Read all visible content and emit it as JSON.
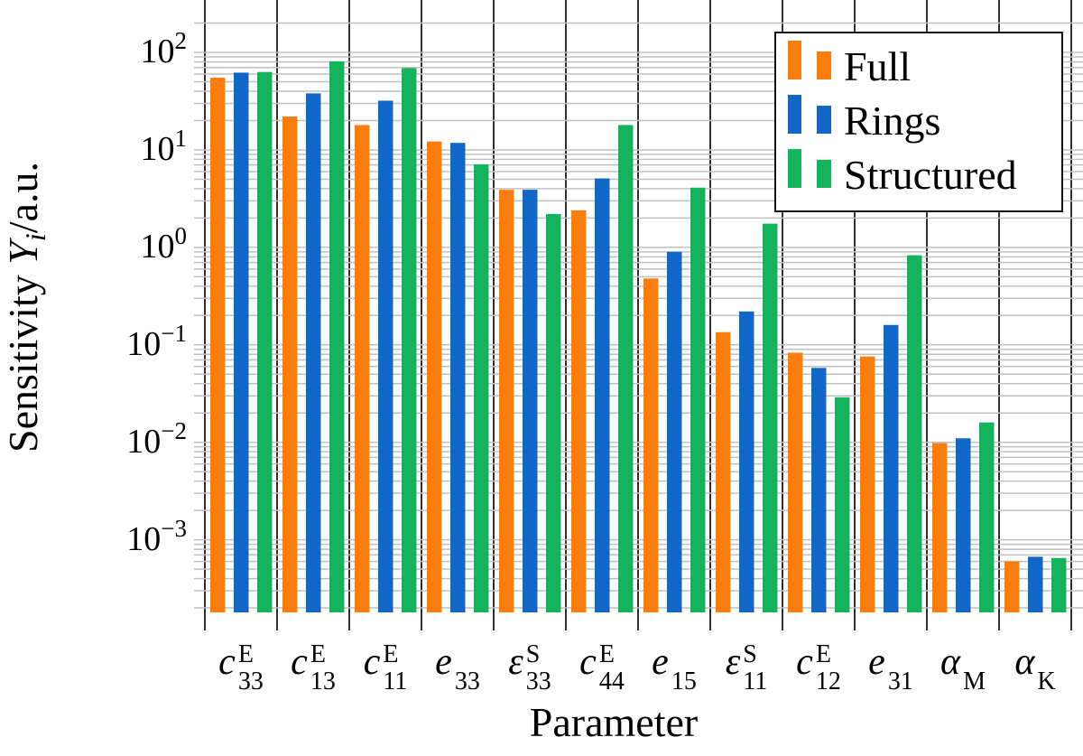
{
  "chart_data": {
    "type": "bar",
    "yscale": "log",
    "grid": "both",
    "title": "",
    "xlabel": "Parameter",
    "ylabel": "Sensitivity Υi/a.u.",
    "ylabel_parts": {
      "prefix": "Sensitivity ",
      "symbol": "Υ",
      "symbol_sub": "i",
      "suffix": "/a.u."
    },
    "ylim": [
      0.00018,
      345
    ],
    "y_tick_base": "10",
    "y_ticks": [
      {
        "value": 100,
        "exp": "2"
      },
      {
        "value": 10,
        "exp": "1"
      },
      {
        "value": 1,
        "exp": "0"
      },
      {
        "value": 0.1,
        "exp": "−1"
      },
      {
        "value": 0.01,
        "exp": "−2"
      },
      {
        "value": 0.001,
        "exp": "−3"
      }
    ],
    "categories": [
      {
        "id": "c33",
        "base": "c",
        "sup": "E",
        "sub": "33"
      },
      {
        "id": "c13",
        "base": "c",
        "sup": "E",
        "sub": "13"
      },
      {
        "id": "c11",
        "base": "c",
        "sup": "E",
        "sub": "11"
      },
      {
        "id": "e33",
        "base": "e",
        "sup": "",
        "sub": "33"
      },
      {
        "id": "eps33",
        "base": "ε",
        "sup": "S",
        "sub": "33"
      },
      {
        "id": "c44",
        "base": "c",
        "sup": "E",
        "sub": "44"
      },
      {
        "id": "e15",
        "base": "e",
        "sup": "",
        "sub": "15"
      },
      {
        "id": "eps11",
        "base": "ε",
        "sup": "S",
        "sub": "11"
      },
      {
        "id": "c12",
        "base": "c",
        "sup": "E",
        "sub": "12"
      },
      {
        "id": "e31",
        "base": "e",
        "sup": "",
        "sub": "31"
      },
      {
        "id": "alphaM",
        "base": "α",
        "sup": "",
        "sub": "M"
      },
      {
        "id": "alphaK",
        "base": "α",
        "sup": "",
        "sub": "K"
      }
    ],
    "series": [
      {
        "id": "full",
        "name": "Full",
        "color": "#fc7d0d",
        "values": [
          55,
          22,
          18,
          12.2,
          3.9,
          2.4,
          0.48,
          0.135,
          0.083,
          0.076,
          0.0098,
          0.0006
        ]
      },
      {
        "id": "rings",
        "name": "Rings",
        "color": "#1267c6",
        "values": [
          62,
          38,
          32,
          11.8,
          3.9,
          5.1,
          0.9,
          0.22,
          0.058,
          0.16,
          0.011,
          0.00067
        ]
      },
      {
        "id": "structured",
        "name": "Structured",
        "color": "#12b45c",
        "values": [
          63,
          81,
          69,
          7.1,
          2.2,
          18,
          4.1,
          1.75,
          0.029,
          0.83,
          0.016,
          0.00065
        ]
      }
    ],
    "legend_position": "top-right",
    "colors": {
      "x_grid": "#1a1a1a",
      "y_grid": "#c0c0c0",
      "legend_border": "#111111"
    }
  }
}
